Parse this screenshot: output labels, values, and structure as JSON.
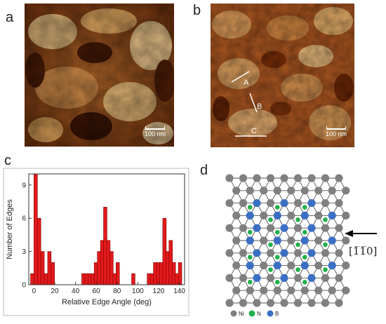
{
  "panels": {
    "a": {
      "letter": "a",
      "scale_label": "100 nm"
    },
    "b": {
      "letter": "b",
      "scale_label": "100 nm",
      "line_labels": [
        "A",
        "B",
        "C"
      ]
    },
    "c": {
      "letter": "c"
    },
    "d": {
      "letter": "d",
      "direction_label": "[1̅1̅0]",
      "legend": [
        {
          "name": "Ni",
          "color": "#808080"
        },
        {
          "name": "N",
          "color": "#22b04b"
        },
        {
          "name": "B",
          "color": "#3b6fc4"
        }
      ]
    }
  },
  "colors": {
    "bar_fill": "#e31a1c",
    "bar_stroke": "#7a0000"
  },
  "chart_data": {
    "type": "bar",
    "xlabel": "Relative Edge Angle (deg)",
    "ylabel": "Number of Edges",
    "xlim": [
      -5,
      145
    ],
    "ylim": [
      0,
      10
    ],
    "xticks": [
      0,
      20,
      40,
      60,
      80,
      100,
      120,
      140
    ],
    "yticks": [
      0,
      3,
      6,
      9
    ],
    "bin_width": 3.3,
    "x": [
      -3.3,
      0,
      3.3,
      6.6,
      9.9,
      13.2,
      16.5,
      46,
      49,
      52,
      55,
      58,
      61,
      64,
      67,
      70,
      73,
      76,
      79,
      94,
      109,
      112,
      115,
      118,
      121,
      124,
      127,
      130,
      133,
      136,
      139
    ],
    "values": [
      1,
      10,
      6,
      3,
      1,
      3,
      2,
      1,
      1,
      1,
      1,
      2,
      3,
      4,
      7,
      4,
      3,
      1,
      2,
      1,
      1,
      1,
      2,
      2,
      2,
      6,
      3,
      4,
      2,
      1,
      2
    ]
  }
}
